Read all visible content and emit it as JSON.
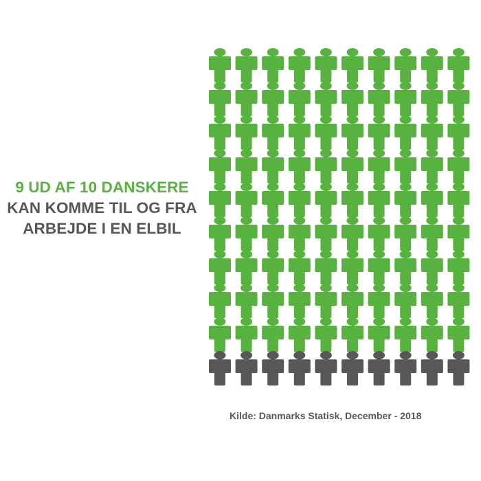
{
  "headline": {
    "line1": "9 UD AF 10 DANSKERE",
    "line2": "KAN KOMME TIL OG FRA",
    "line3": "ARBEJDE I EN ELBIL"
  },
  "source": "Kilde: Danmarks Statisk, December - 2018",
  "colors": {
    "accent": "#57b23f",
    "neutral": "#555759"
  },
  "chart_data": {
    "type": "pictogram",
    "icon": "person-icon",
    "rows": 10,
    "columns": 10,
    "total": 100,
    "highlighted": 90,
    "highlighted_ratio": "9/10",
    "highlight_color": "#57b23f",
    "other_color": "#555759"
  }
}
